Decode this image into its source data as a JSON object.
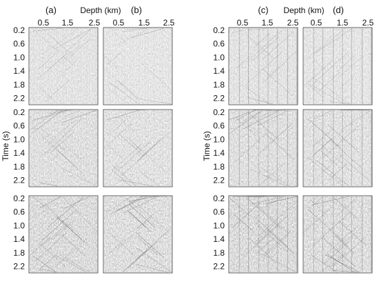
{
  "figure": {
    "panel_labels": [
      "(a)",
      "(b)",
      "(c)",
      "(d)"
    ],
    "depth_axis_label": "Depth (km)",
    "depth_tick_labels": [
      "0.5",
      "1.5",
      "2.5"
    ],
    "time_axis_label": "Time (s)",
    "time_tick_labels": [
      "0.2",
      "0.6",
      "1.0",
      "1.4",
      "1.8",
      "2.2"
    ],
    "rows": 3,
    "columns": 4,
    "trace_color": "#6a6a6a",
    "frame_color": "#333333"
  }
}
